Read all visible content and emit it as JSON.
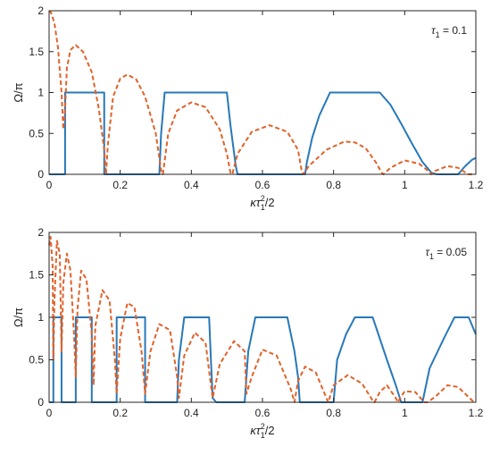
{
  "chart_data": [
    {
      "type": "line",
      "annotation": "τ₁ = 0.1",
      "annotation_parts": {
        "sym": "τ",
        "sub": "1",
        "rest": " = 0.1"
      },
      "xlim": [
        0,
        1.2
      ],
      "ylim": [
        0,
        2
      ],
      "xticks": [
        "0",
        "0.2",
        "0.4",
        "0.6",
        "0.8",
        "1",
        "1.2"
      ],
      "yticks": [
        "0",
        "0.5",
        "1",
        "1.5",
        "2"
      ],
      "xlabel": "κτ₁²/2",
      "ylabel": "Ω/π",
      "grid": false,
      "series": [
        {
          "style": "solid",
          "color": "#2878b8",
          "x": [
            0,
            0.04,
            0.045,
            0.045,
            0.155,
            0.155,
            0.16,
            0.31,
            0.315,
            0.325,
            0.5,
            0.51,
            0.525,
            0.53,
            0.72,
            0.725,
            0.74,
            0.76,
            0.79,
            0.93,
            0.96,
            0.99,
            1.02,
            1.05,
            1.075,
            1.09,
            1.15,
            1.17,
            1.19,
            1.2
          ],
          "y": [
            0,
            0,
            0,
            1,
            1,
            0,
            0,
            0,
            0.5,
            1,
            1,
            0.6,
            0.1,
            0,
            0,
            0.15,
            0.45,
            0.72,
            1,
            1,
            0.85,
            0.62,
            0.38,
            0.15,
            0.02,
            0,
            0,
            0.1,
            0.18,
            0.2
          ]
        },
        {
          "style": "dashed",
          "color": "#e0622a",
          "x": [
            0,
            0.005,
            0.015,
            0.025,
            0.035,
            0.04,
            0.045,
            0.05,
            0.06,
            0.075,
            0.095,
            0.12,
            0.14,
            0.155,
            0.16,
            0.165,
            0.18,
            0.2,
            0.22,
            0.245,
            0.27,
            0.3,
            0.315,
            0.32,
            0.335,
            0.36,
            0.4,
            0.44,
            0.48,
            0.5,
            0.51,
            0.515,
            0.53,
            0.57,
            0.62,
            0.67,
            0.7,
            0.71,
            0.715,
            0.73,
            0.78,
            0.83,
            0.86,
            0.89,
            0.92,
            0.935,
            0.94,
            0.96,
            1.0,
            1.04,
            1.07,
            1.075,
            1.085,
            1.12,
            1.15,
            1.175,
            1.18,
            1.19
          ],
          "y": [
            2,
            1.98,
            1.85,
            1.55,
            1.0,
            0.55,
            0.8,
            1.3,
            1.52,
            1.58,
            1.5,
            1.25,
            0.8,
            0.3,
            0,
            0.35,
            0.95,
            1.17,
            1.22,
            1.16,
            0.95,
            0.5,
            0.05,
            0,
            0.5,
            0.78,
            0.88,
            0.82,
            0.55,
            0.25,
            0.02,
            0,
            0.25,
            0.52,
            0.6,
            0.52,
            0.3,
            0.05,
            0,
            0.1,
            0.3,
            0.4,
            0.39,
            0.32,
            0.14,
            0.02,
            0,
            0.08,
            0.17,
            0.13,
            0.03,
            0,
            0.04,
            0.1,
            0.08,
            0.01,
            0,
            0
          ]
        }
      ]
    },
    {
      "type": "line",
      "annotation": "τ₁ = 0.05",
      "annotation_parts": {
        "sym": "τ",
        "sub": "1",
        "rest": " = 0.05"
      },
      "xlim": [
        0,
        1.2
      ],
      "ylim": [
        0,
        2
      ],
      "xticks": [
        "0",
        "0.2",
        "0.4",
        "0.6",
        "0.8",
        "1",
        "1.2"
      ],
      "yticks": [
        "0",
        "0.5",
        "1",
        "1.5",
        "2"
      ],
      "xlabel": "κτ₁²/2",
      "ylabel": "Ω/π",
      "grid": false,
      "series": [
        {
          "style": "solid",
          "color": "#2878b8",
          "x": [
            0,
            0.01,
            0.012,
            0.012,
            0.035,
            0.035,
            0.04,
            0.075,
            0.075,
            0.12,
            0.12,
            0.13,
            0.19,
            0.19,
            0.27,
            0.27,
            0.285,
            0.36,
            0.365,
            0.38,
            0.45,
            0.455,
            0.46,
            0.47,
            0.55,
            0.56,
            0.58,
            0.67,
            0.69,
            0.7,
            0.705,
            0.8,
            0.81,
            0.835,
            0.86,
            0.91,
            0.93,
            0.95,
            0.975,
            0.99,
            1.05,
            1.07,
            1.11,
            1.14,
            1.18,
            1.2
          ],
          "y": [
            0,
            0,
            0,
            1,
            1,
            0,
            0,
            0,
            1,
            1,
            0,
            0,
            0,
            1,
            1,
            0,
            0,
            0,
            0.5,
            1,
            1,
            0.5,
            0.05,
            0,
            0,
            0.6,
            1,
            1,
            0.6,
            0.3,
            0,
            0,
            0.5,
            0.8,
            1,
            1,
            0.75,
            0.5,
            0.2,
            0,
            0,
            0.4,
            0.75,
            1,
            1,
            0.8
          ]
        },
        {
          "style": "dashed",
          "color": "#e0622a",
          "x": [
            0,
            0.004,
            0.01,
            0.012,
            0.015,
            0.022,
            0.03,
            0.035,
            0.04,
            0.05,
            0.06,
            0.07,
            0.075,
            0.08,
            0.09,
            0.105,
            0.12,
            0.125,
            0.13,
            0.15,
            0.17,
            0.185,
            0.19,
            0.2,
            0.22,
            0.24,
            0.26,
            0.27,
            0.285,
            0.31,
            0.34,
            0.36,
            0.365,
            0.38,
            0.41,
            0.44,
            0.455,
            0.46,
            0.48,
            0.52,
            0.55,
            0.555,
            0.57,
            0.6,
            0.64,
            0.68,
            0.69,
            0.7,
            0.72,
            0.75,
            0.78,
            0.785,
            0.8,
            0.84,
            0.88,
            0.91,
            0.915,
            0.93,
            0.95,
            0.975,
            0.98,
            1.0,
            1.03,
            1.055,
            1.065,
            1.09,
            1.12,
            1.15,
            1.17,
            1.19,
            1.195,
            1.2
          ],
          "y": [
            1.85,
            1.95,
            1.6,
            0.5,
            1.2,
            1.9,
            1.75,
            0.6,
            1.4,
            1.75,
            1.55,
            0.8,
            0.3,
            1.1,
            1.55,
            1.45,
            0.8,
            0.2,
            0.9,
            1.32,
            1.2,
            0.5,
            0.1,
            0.75,
            1.17,
            1.12,
            0.6,
            0.1,
            0.6,
            0.92,
            0.85,
            0.3,
            0.05,
            0.55,
            0.82,
            0.7,
            0.2,
            0.05,
            0.45,
            0.72,
            0.6,
            0.1,
            0.3,
            0.62,
            0.55,
            0.15,
            0,
            0.25,
            0.42,
            0.35,
            0.05,
            0,
            0.2,
            0.32,
            0.22,
            0.02,
            0,
            0.12,
            0.2,
            0.05,
            0,
            0.13,
            0.12,
            0,
            0,
            0.08,
            0.2,
            0.18,
            0.1,
            0.02,
            0,
            0
          ]
        }
      ]
    }
  ]
}
